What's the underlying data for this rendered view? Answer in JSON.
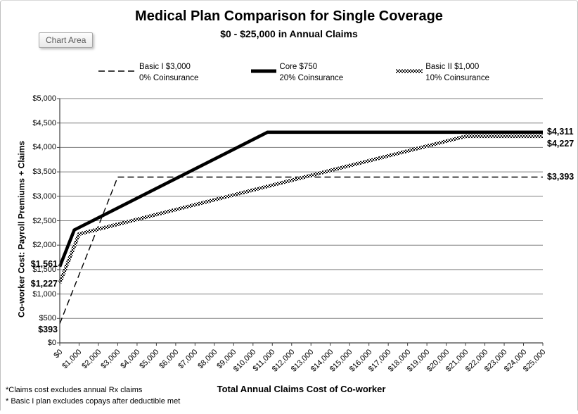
{
  "window": {
    "tooltip": "Chart Area"
  },
  "chart_data": {
    "type": "line",
    "title": "Medical Plan Comparison for Single Coverage",
    "subtitle": "$0 - $25,000 in Annual Claims",
    "xlabel": "Total Annual Claims Cost of Co-worker",
    "ylabel": "Co-worker Cost: Payroll Premiums + Claims",
    "xlim": [
      0,
      25000
    ],
    "xtick_step": 1000,
    "ylim": [
      0,
      5000
    ],
    "ytick_step": 500,
    "grid": "horizontal-only",
    "legend_position": "top-center",
    "series": [
      {
        "name": "Basic I $3,000",
        "coinsurance": "0% Coinsurance",
        "style": "dashed",
        "points": [
          [
            0,
            393
          ],
          [
            3000,
            3393
          ],
          [
            25000,
            3393
          ]
        ],
        "start_label": "$393",
        "end_label": "$3,393",
        "start_label_dy": 9,
        "end_label_dy": 0
      },
      {
        "name": "Core $750",
        "coinsurance": "20% Coinsurance",
        "style": "thick",
        "points": [
          [
            0,
            1561
          ],
          [
            750,
            2311
          ],
          [
            10750,
            4311
          ],
          [
            25000,
            4311
          ]
        ],
        "start_label": "$1,561",
        "end_label": "$4,311",
        "start_label_dy": -3,
        "end_label_dy": 0
      },
      {
        "name": "Basic II $1,000",
        "coinsurance": "10% Coinsurance",
        "style": "checkered",
        "points": [
          [
            0,
            1227
          ],
          [
            1000,
            2227
          ],
          [
            21000,
            4227
          ],
          [
            25000,
            4227
          ]
        ],
        "start_label": "$1,227",
        "end_label": "$4,227",
        "start_label_dy": 2,
        "end_label_dy": 11
      }
    ],
    "footnotes": [
      "*Claims cost excludes annual Rx claims",
      "* Basic I plan excludes copays after deductible met"
    ],
    "colors": {
      "line": "#000000",
      "grid": "#7f7f7f",
      "axis": "#404040",
      "text": "#000000",
      "tooltip_text": "#595959"
    }
  }
}
